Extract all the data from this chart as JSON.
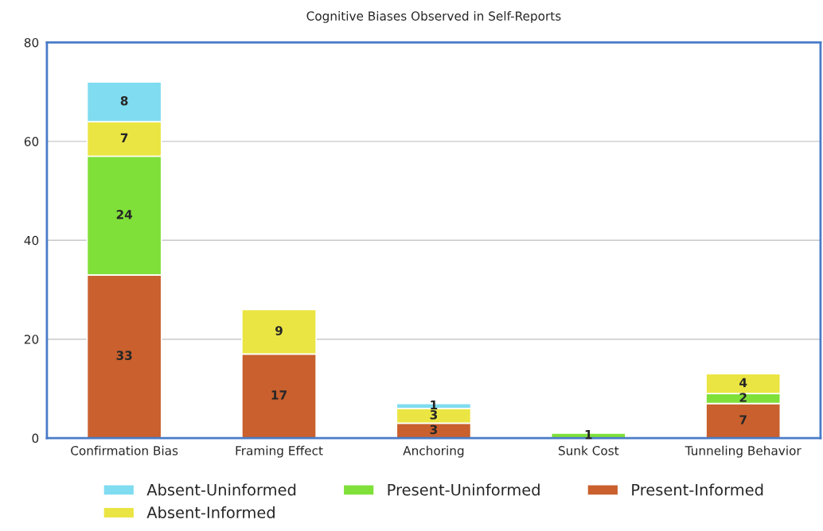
{
  "chart_data": {
    "type": "bar",
    "title": "Cognitive Biases Observed in Self-Reports",
    "categories": [
      "Confirmation Bias",
      "Framing Effect",
      "Anchoring",
      "Sunk Cost",
      "Tunneling Behavior"
    ],
    "stacked": true,
    "series": [
      {
        "name": "Present-Informed",
        "color": "#c9602e",
        "values": [
          33,
          17,
          3,
          null,
          7
        ]
      },
      {
        "name": "Present-Uninformed",
        "color": "#80e03a",
        "values": [
          24,
          null,
          null,
          1,
          2
        ]
      },
      {
        "name": "Absent-Informed",
        "color": "#ebe544",
        "values": [
          7,
          9,
          3,
          null,
          4
        ]
      },
      {
        "name": "Absent-Uninformed",
        "color": "#80dcf0",
        "values": [
          8,
          null,
          1,
          null,
          null
        ]
      }
    ],
    "ylim": [
      0,
      80
    ],
    "yticks": [
      0,
      20,
      40,
      60,
      80
    ],
    "grid": "y",
    "legend": "bottom",
    "data_labels": true
  }
}
